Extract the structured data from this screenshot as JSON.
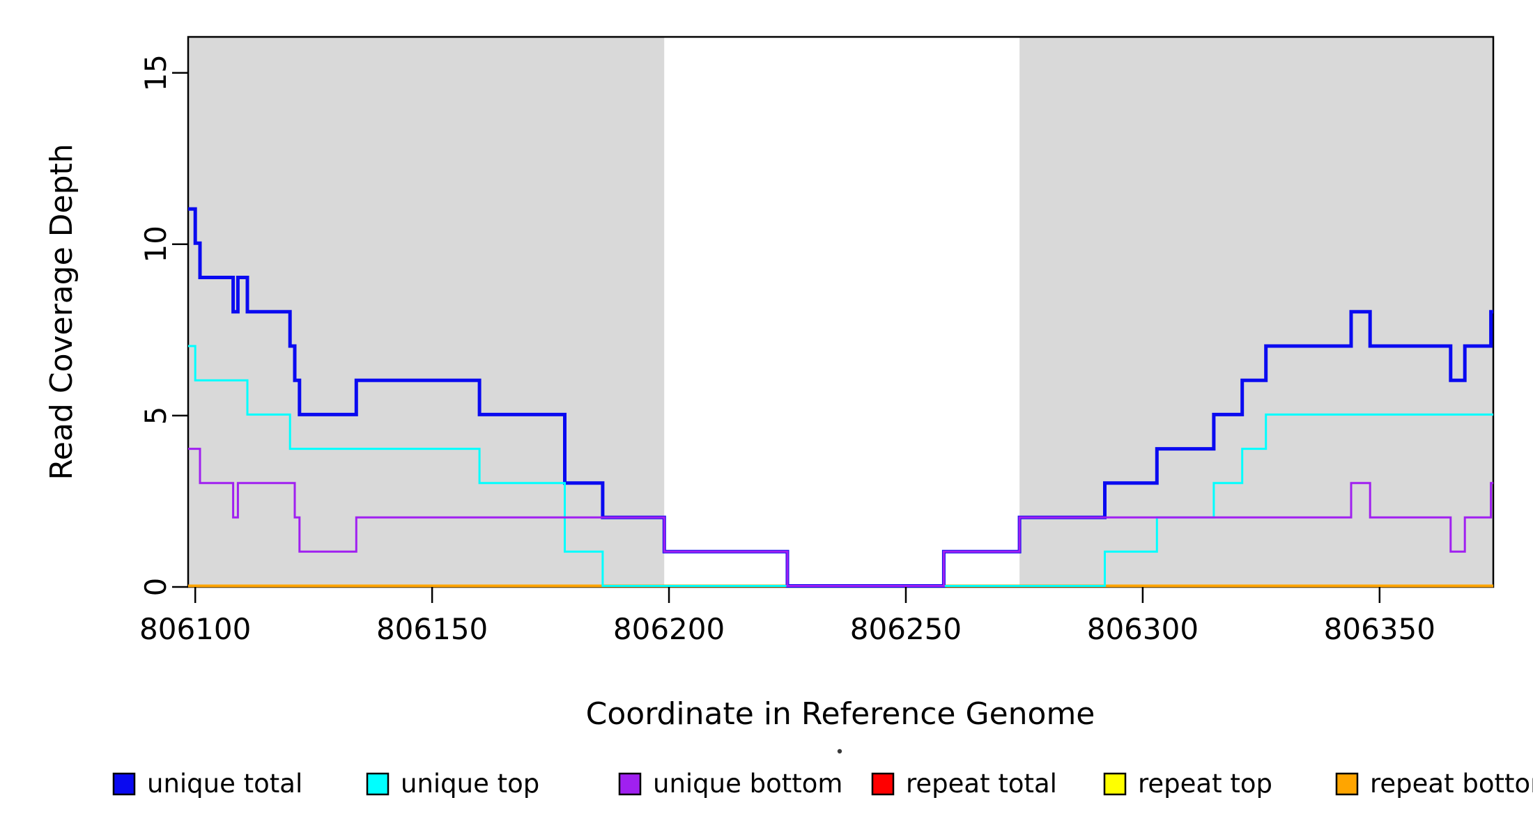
{
  "chart_data": {
    "type": "line",
    "subtype": "step",
    "title": "",
    "xlabel": "Coordinate in Reference Genome",
    "ylabel": "Read Coverage Depth",
    "xlim": [
      806098.5,
      806374
    ],
    "ylim": [
      0,
      16.05
    ],
    "x_ticks": [
      806100,
      806150,
      806200,
      806250,
      806300,
      806350
    ],
    "y_ticks": [
      0,
      5,
      10,
      15
    ],
    "grid": false,
    "background": "#ffffff",
    "shaded_regions": [
      {
        "x0": 806098.5,
        "x1": 806199,
        "color": "#d9d9d9"
      },
      {
        "x0": 806274,
        "x1": 806374,
        "color": "#d9d9d9"
      }
    ],
    "series": [
      {
        "name": "unique total",
        "color": "#0a0af0",
        "line_width": 5,
        "steps": [
          [
            806098.5,
            11
          ],
          [
            806100,
            10
          ],
          [
            806101,
            9
          ],
          [
            806108,
            8
          ],
          [
            806109,
            9
          ],
          [
            806111,
            8
          ],
          [
            806120,
            7
          ],
          [
            806121,
            6
          ],
          [
            806122,
            5
          ],
          [
            806134,
            6
          ],
          [
            806160,
            5
          ],
          [
            806178,
            3
          ],
          [
            806186,
            2
          ],
          [
            806199,
            1
          ],
          [
            806225,
            0
          ],
          [
            806258,
            1
          ],
          [
            806274,
            2
          ],
          [
            806292,
            3
          ],
          [
            806303,
            4
          ],
          [
            806315,
            5
          ],
          [
            806321,
            6
          ],
          [
            806326,
            7
          ],
          [
            806344,
            8
          ],
          [
            806348,
            7
          ],
          [
            806365,
            6
          ],
          [
            806368,
            7
          ],
          [
            806373.5,
            8
          ]
        ]
      },
      {
        "name": "unique top",
        "color": "#00ffff",
        "line_width": 3,
        "steps": [
          [
            806098.5,
            7
          ],
          [
            806100,
            6
          ],
          [
            806111,
            5
          ],
          [
            806120,
            4
          ],
          [
            806160,
            3
          ],
          [
            806178,
            1
          ],
          [
            806186,
            0
          ],
          [
            806292,
            1
          ],
          [
            806303,
            2
          ],
          [
            806315,
            3
          ],
          [
            806321,
            4
          ],
          [
            806326,
            5
          ]
        ]
      },
      {
        "name": "unique bottom",
        "color": "#a020f0",
        "line_width": 3,
        "steps": [
          [
            806098.5,
            4
          ],
          [
            806101,
            3
          ],
          [
            806108,
            2
          ],
          [
            806109,
            3
          ],
          [
            806121,
            2
          ],
          [
            806122,
            1
          ],
          [
            806134,
            2
          ],
          [
            806199,
            1
          ],
          [
            806225,
            0
          ],
          [
            806258,
            1
          ],
          [
            806274,
            2
          ],
          [
            806344,
            3
          ],
          [
            806348,
            2
          ],
          [
            806365,
            1
          ],
          [
            806368,
            2
          ],
          [
            806373.5,
            3
          ]
        ]
      },
      {
        "name": "repeat total",
        "color": "#ff0000",
        "line_width": 4,
        "steps": [
          [
            806098.5,
            0
          ]
        ]
      },
      {
        "name": "repeat top",
        "color": "#ffff00",
        "line_width": 4,
        "steps": [
          [
            806098.5,
            0
          ]
        ]
      },
      {
        "name": "repeat bottom",
        "color": "#ffa500",
        "line_width": 4,
        "steps": [
          [
            806098.5,
            0
          ]
        ]
      }
    ],
    "draw_order": [
      3,
      4,
      5,
      0,
      1,
      2
    ],
    "legend": {
      "position": "bottom",
      "entries": [
        {
          "label": "unique total",
          "color": "#0a0af0"
        },
        {
          "label": "unique top",
          "color": "#00ffff"
        },
        {
          "label": "unique bottom",
          "color": "#a020f0"
        },
        {
          "label": "repeat total",
          "color": "#ff0000"
        },
        {
          "label": "repeat top",
          "color": "#ffff00"
        },
        {
          "label": "repeat bottom",
          "color": "#ffa500"
        }
      ]
    }
  }
}
